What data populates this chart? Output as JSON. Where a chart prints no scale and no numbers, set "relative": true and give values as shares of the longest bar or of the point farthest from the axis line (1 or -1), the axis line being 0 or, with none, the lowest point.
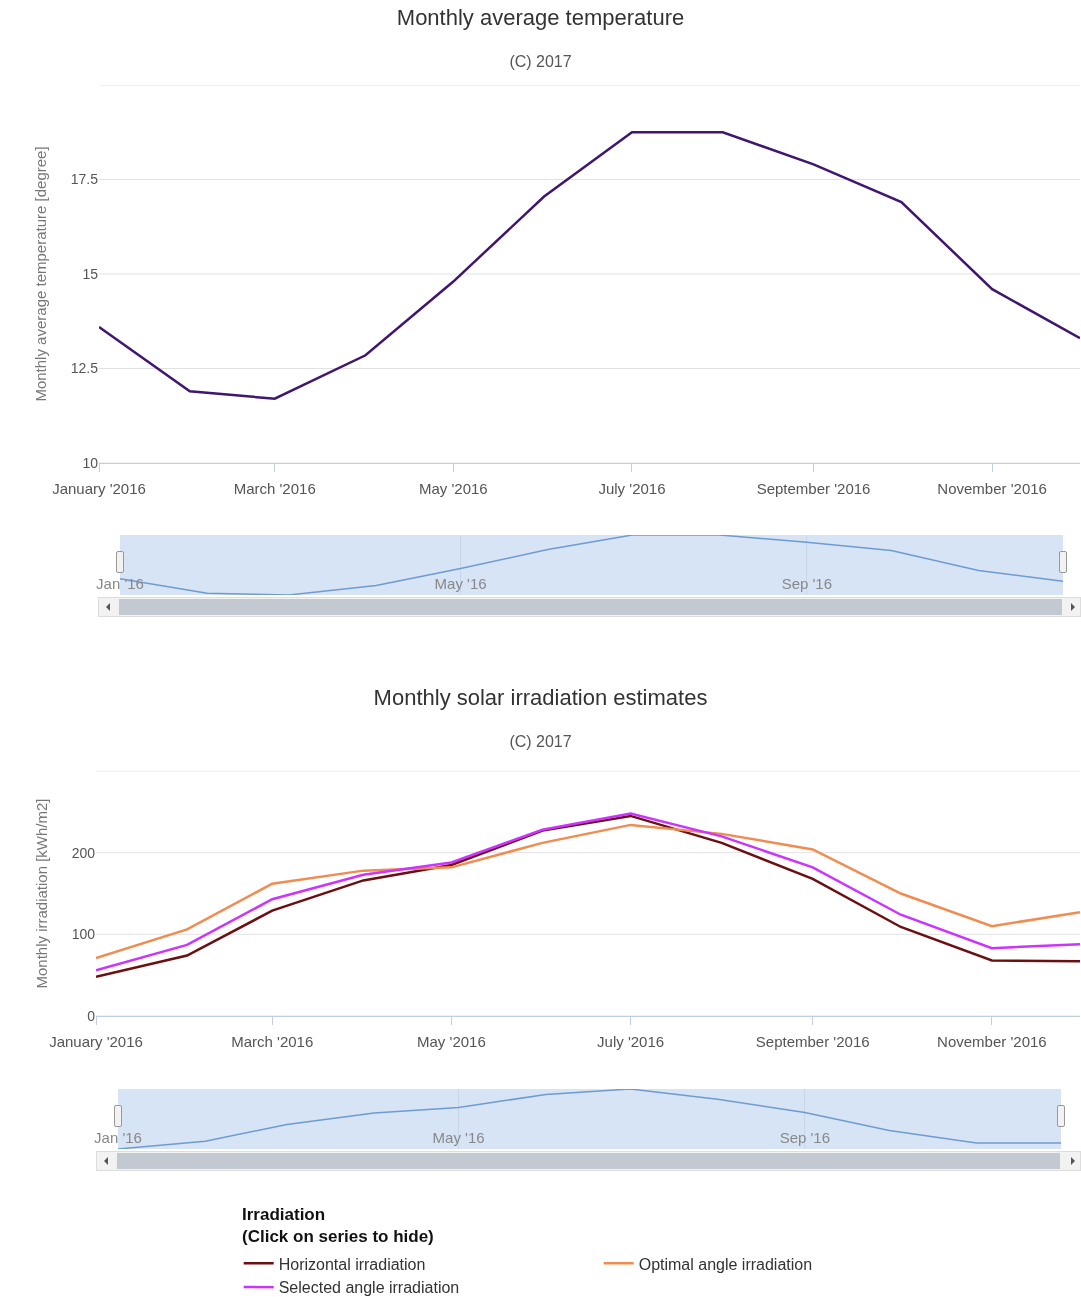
{
  "chart_data": [
    {
      "type": "line",
      "title": "Monthly average temperature",
      "subtitle": "(C) 2017",
      "ylabel": "Monthly average temperature [degree]",
      "x": [
        "2016-01",
        "2016-02",
        "2016-03",
        "2016-04",
        "2016-05",
        "2016-06",
        "2016-07",
        "2016-08",
        "2016-09",
        "2016-10",
        "2016-11",
        "2016-12"
      ],
      "xlim": [
        "2016-01",
        "2016-12"
      ],
      "xticks": [
        {
          "value": "2016-01",
          "label": "January '2016"
        },
        {
          "value": "2016-03",
          "label": "March '2016"
        },
        {
          "value": "2016-05",
          "label": "May '2016"
        },
        {
          "value": "2016-07",
          "label": "July '2016"
        },
        {
          "value": "2016-09",
          "label": "September '2016"
        },
        {
          "value": "2016-11",
          "label": "November '2016"
        }
      ],
      "ylim": [
        10,
        20
      ],
      "yticks": [
        10,
        12.5,
        15,
        17.5,
        {
          "value": 20,
          "label": null
        }
      ],
      "grid": "y",
      "series": [
        {
          "color": "#3f1670",
          "values": [
            13.6,
            11.9,
            11.7,
            12.85,
            14.8,
            17.05,
            18.75,
            18.75,
            17.9,
            16.9,
            14.6,
            13.3
          ]
        }
      ]
    },
    {
      "type": "line",
      "relative": true,
      "tick_labels": "x",
      "grid": "x",
      "x": [
        "2016-01",
        "2016-02",
        "2016-03",
        "2016-04",
        "2016-05",
        "2016-06",
        "2016-07",
        "2016-08",
        "2016-09",
        "2016-10",
        "2016-11",
        "2016-12"
      ],
      "xlim": [
        "2016-01",
        "2016-12"
      ],
      "xticks": [
        {
          "value": "2016-01",
          "label": "Jan '16"
        },
        {
          "value": "2016-05",
          "label": "May '16"
        },
        {
          "value": "2016-09",
          "label": "Sep '16"
        }
      ],
      "series": [
        {
          "color": "#6f9bd0",
          "values": [
            0.27,
            0.03,
            0,
            0.16,
            0.44,
            0.76,
            1,
            1,
            0.88,
            0.74,
            0.41,
            0.23
          ]
        }
      ]
    },
    {
      "type": "line",
      "title": "Monthly solar irradiation estimates",
      "subtitle": "(C) 2017",
      "ylabel": "Monthly irradiation [kWh/m2]",
      "x": [
        "2016-01",
        "2016-02",
        "2016-03",
        "2016-04",
        "2016-05",
        "2016-06",
        "2016-07",
        "2016-08",
        "2016-09",
        "2016-10",
        "2016-11",
        "2016-12"
      ],
      "xlim": [
        "2016-01",
        "2016-12"
      ],
      "xticks": [
        {
          "value": "2016-01",
          "label": "January '2016"
        },
        {
          "value": "2016-03",
          "label": "March '2016"
        },
        {
          "value": "2016-05",
          "label": "May '2016"
        },
        {
          "value": "2016-07",
          "label": "July '2016"
        },
        {
          "value": "2016-09",
          "label": "September '2016"
        },
        {
          "value": "2016-11",
          "label": "November '2016"
        }
      ],
      "ylim": [
        0,
        300
      ],
      "yticks": [
        0,
        100,
        200,
        {
          "value": 300,
          "label": null
        }
      ],
      "grid": "y",
      "legend": "bottom",
      "legend_title": "Irradiation\n(Click on series to hide)",
      "series": [
        {
          "name": "Horizontal irradiation",
          "color": "#6b0f12",
          "values": [
            48,
            74,
            129,
            166,
            185,
            227,
            245,
            212,
            168,
            109,
            68,
            67
          ]
        },
        {
          "name": "Optimal angle irradiation",
          "color": "#f08c50",
          "values": [
            71,
            106,
            162,
            178,
            182,
            212,
            234,
            223,
            204,
            150,
            110,
            127
          ]
        },
        {
          "name": "Selected angle irradiation",
          "color": "#cc33ff",
          "values": [
            56,
            87,
            143,
            173,
            188,
            228,
            248,
            220,
            182,
            124,
            83,
            88
          ]
        }
      ]
    },
    {
      "type": "line",
      "relative": true,
      "tick_labels": "x",
      "grid": "x",
      "x": [
        "2016-01",
        "2016-02",
        "2016-03",
        "2016-04",
        "2016-05",
        "2016-06",
        "2016-07",
        "2016-08",
        "2016-09",
        "2016-10",
        "2016-11",
        "2016-12"
      ],
      "xlim": [
        "2016-01",
        "2016-12"
      ],
      "xticks": [
        {
          "value": "2016-01",
          "label": "Jan '16"
        },
        {
          "value": "2016-05",
          "label": "May '16"
        },
        {
          "value": "2016-09",
          "label": "Sep '16"
        }
      ],
      "series": [
        {
          "color": "#6f9bd0",
          "values": [
            0,
            0.13,
            0.41,
            0.6,
            0.69,
            0.91,
            1,
            0.83,
            0.61,
            0.31,
            0.1,
            0.1
          ]
        }
      ]
    }
  ]
}
